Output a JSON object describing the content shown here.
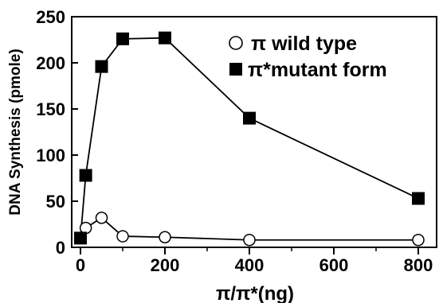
{
  "chart_data": {
    "type": "line",
    "title": "",
    "xlabel": "π/π*(ng)",
    "ylabel": "DNA Synthesis (pmole)",
    "xlim": [
      0,
      800
    ],
    "ylim": [
      0,
      250
    ],
    "x_ticks": [
      "0",
      "200",
      "400",
      "600",
      "800"
    ],
    "y_ticks": [
      "0",
      "50",
      "100",
      "150",
      "200",
      "250"
    ],
    "grid": false,
    "legend_position": "top-right",
    "series": [
      {
        "name": "π wild type",
        "marker": "open-circle",
        "color": "#000000",
        "points": [
          {
            "x": 0,
            "y": 10
          },
          {
            "x": 12.5,
            "y": 21
          },
          {
            "x": 50,
            "y": 32
          },
          {
            "x": 100,
            "y": 12
          },
          {
            "x": 200,
            "y": 11
          },
          {
            "x": 400,
            "y": 8
          },
          {
            "x": 800,
            "y": 8
          }
        ]
      },
      {
        "name": "π*mutant form",
        "marker": "filled-square",
        "color": "#000000",
        "points": [
          {
            "x": 0,
            "y": 10
          },
          {
            "x": 12.5,
            "y": 78
          },
          {
            "x": 50,
            "y": 196
          },
          {
            "x": 100,
            "y": 226
          },
          {
            "x": 200,
            "y": 227
          },
          {
            "x": 400,
            "y": 140
          },
          {
            "x": 800,
            "y": 53
          }
        ]
      }
    ]
  }
}
